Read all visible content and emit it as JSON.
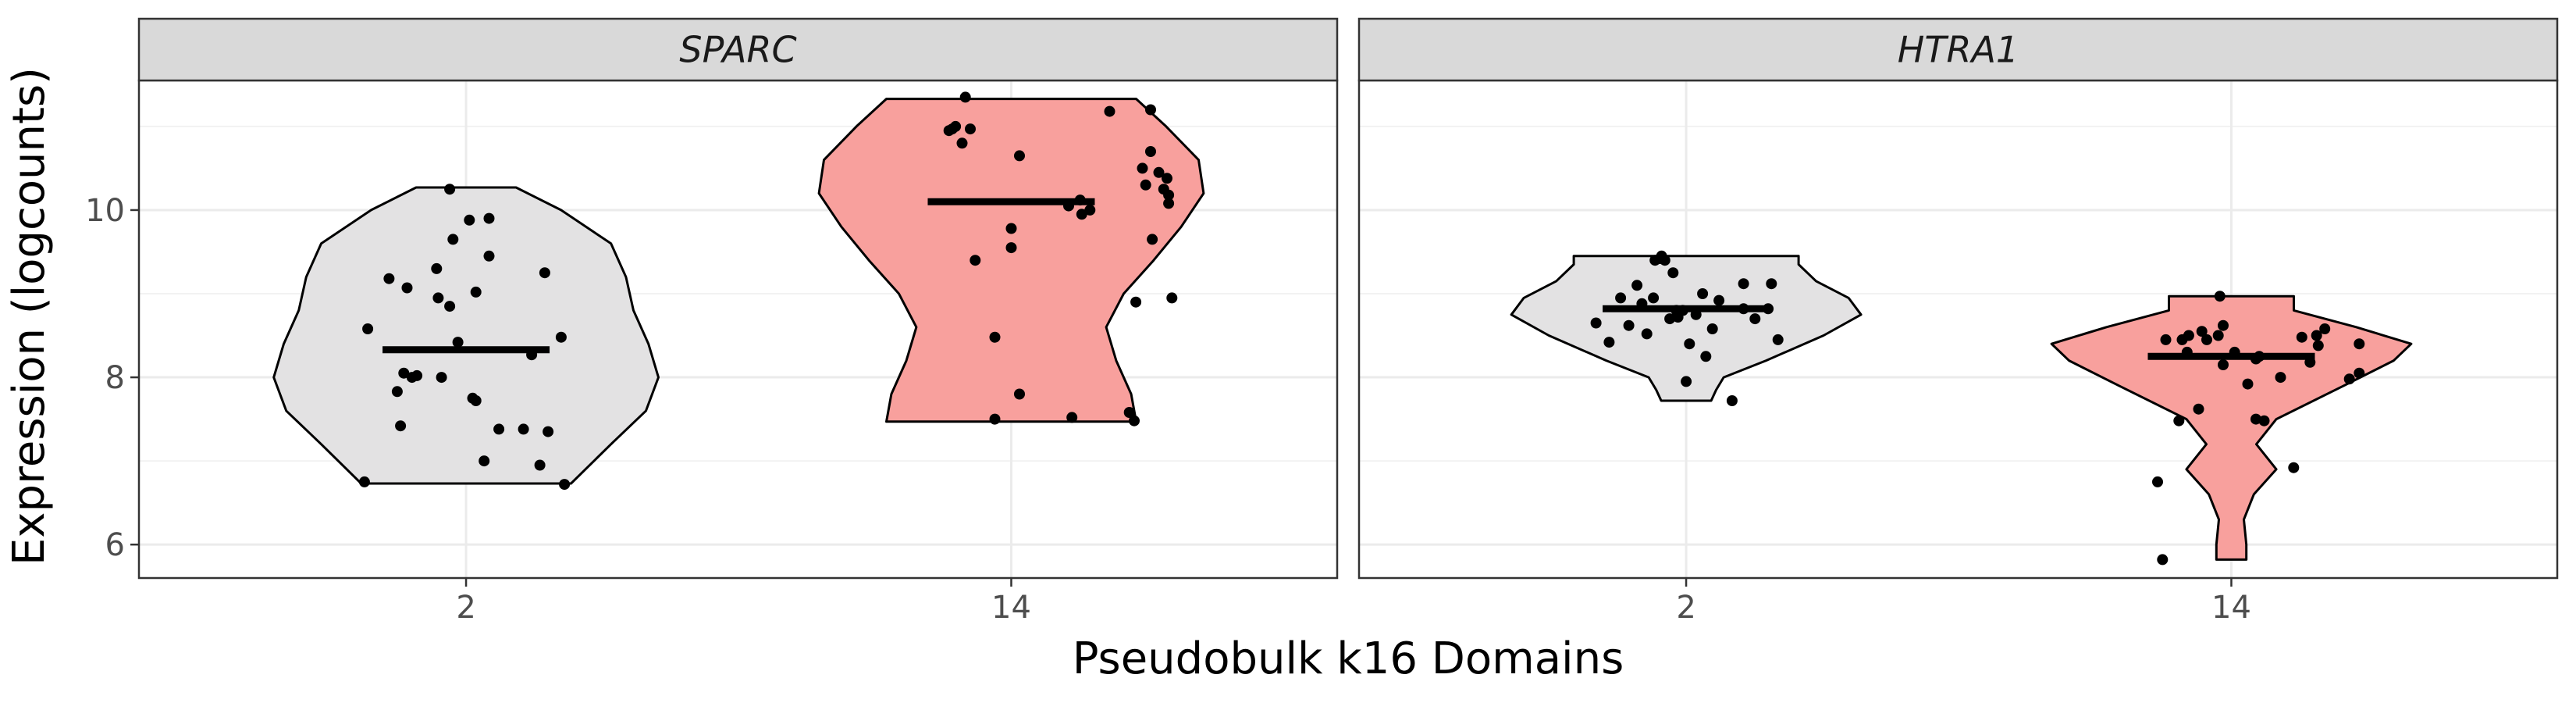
{
  "chart_data": {
    "type": "violin",
    "ylabel": "Expression (logcounts)",
    "xlabel": "Pseudobulk k16 Domains",
    "ylim": [
      5.6,
      11.55
    ],
    "yticks": [
      6,
      8,
      10
    ],
    "grid": true,
    "categories": [
      "2",
      "14"
    ],
    "colors": {
      "2": "#e3e2e3",
      "14": "#f8a09d",
      "strip": "#d9d9d9",
      "grid": "#ebebeb",
      "panel_border": "#333333"
    },
    "panels": [
      {
        "strip": "SPARC",
        "groups": [
          {
            "category": "2",
            "median": 8.33,
            "range": [
              6.73,
              10.27
            ],
            "violin": [
              [
                6.73,
                0.42
              ],
              [
                7.2,
                0.58
              ],
              [
                7.6,
                0.72
              ],
              [
                8.0,
                0.77
              ],
              [
                8.4,
                0.73
              ],
              [
                8.8,
                0.67
              ],
              [
                9.2,
                0.64
              ],
              [
                9.6,
                0.58
              ],
              [
                10.0,
                0.38
              ],
              [
                10.27,
                0.2
              ]
            ],
            "points": [
              [
                -0.62,
                6.75
              ],
              [
                -0.6,
                8.58
              ],
              [
                -0.47,
                9.18
              ],
              [
                -0.42,
                7.83
              ],
              [
                -0.4,
                7.42
              ],
              [
                -0.38,
                8.05
              ],
              [
                -0.36,
                9.07
              ],
              [
                -0.33,
                8.0
              ],
              [
                -0.3,
                8.02
              ],
              [
                -0.18,
                9.3
              ],
              [
                -0.17,
                8.95
              ],
              [
                -0.15,
                8.0
              ],
              [
                -0.1,
                8.85
              ],
              [
                -0.1,
                10.25
              ],
              [
                -0.08,
                9.65
              ],
              [
                -0.05,
                8.42
              ],
              [
                0.02,
                9.88
              ],
              [
                0.04,
                7.75
              ],
              [
                0.06,
                7.72
              ],
              [
                0.06,
                9.02
              ],
              [
                0.11,
                7.0
              ],
              [
                0.14,
                9.45
              ],
              [
                0.14,
                9.9
              ],
              [
                0.2,
                7.38
              ],
              [
                0.35,
                7.38
              ],
              [
                0.4,
                8.27
              ],
              [
                0.45,
                6.95
              ],
              [
                0.48,
                9.25
              ],
              [
                0.5,
                7.35
              ],
              [
                0.58,
                8.48
              ],
              [
                0.6,
                6.72
              ]
            ]
          },
          {
            "category": "14",
            "median": 10.1,
            "range": [
              7.47,
              11.33
            ],
            "violin": [
              [
                7.47,
                0.5
              ],
              [
                7.8,
                0.48
              ],
              [
                8.2,
                0.42
              ],
              [
                8.6,
                0.38
              ],
              [
                9.0,
                0.45
              ],
              [
                9.4,
                0.57
              ],
              [
                9.8,
                0.68
              ],
              [
                10.2,
                0.77
              ],
              [
                10.6,
                0.75
              ],
              [
                11.0,
                0.62
              ],
              [
                11.33,
                0.5
              ]
            ],
            "points": [
              [
                -0.38,
                10.95
              ],
              [
                -0.36,
                10.97
              ],
              [
                -0.34,
                11.0
              ],
              [
                -0.3,
                10.8
              ],
              [
                -0.28,
                11.35
              ],
              [
                -0.25,
                10.97
              ],
              [
                -0.22,
                9.4
              ],
              [
                -0.1,
                8.48
              ],
              [
                -0.1,
                7.5
              ],
              [
                0.0,
                9.78
              ],
              [
                0.0,
                9.55
              ],
              [
                0.05,
                7.8
              ],
              [
                0.05,
                10.65
              ],
              [
                0.35,
                10.05
              ],
              [
                0.37,
                7.52
              ],
              [
                0.42,
                10.12
              ],
              [
                0.43,
                9.95
              ],
              [
                0.48,
                10.0
              ],
              [
                0.6,
                11.18
              ],
              [
                0.72,
                7.58
              ],
              [
                0.75,
                7.48
              ],
              [
                0.76,
                8.9
              ],
              [
                0.8,
                10.5
              ],
              [
                0.82,
                10.3
              ],
              [
                0.85,
                10.7
              ],
              [
                0.85,
                11.2
              ],
              [
                0.86,
                9.65
              ],
              [
                0.9,
                10.45
              ],
              [
                0.93,
                10.25
              ],
              [
                0.95,
                10.38
              ],
              [
                0.96,
                10.18
              ],
              [
                0.96,
                10.08
              ],
              [
                0.98,
                8.95
              ]
            ]
          }
        ]
      },
      {
        "strip": "HTRA1",
        "groups": [
          {
            "category": "2",
            "median": 8.82,
            "range": [
              7.72,
              9.45
            ],
            "violin": [
              [
                7.72,
                0.1
              ],
              [
                7.85,
                0.12
              ],
              [
                8.0,
                0.15
              ],
              [
                8.2,
                0.32
              ],
              [
                8.5,
                0.55
              ],
              [
                8.75,
                0.7
              ],
              [
                8.95,
                0.65
              ],
              [
                9.15,
                0.52
              ],
              [
                9.35,
                0.45
              ],
              [
                9.45,
                0.45
              ]
            ],
            "points": [
              [
                -0.55,
                8.65
              ],
              [
                -0.47,
                8.42
              ],
              [
                -0.4,
                8.95
              ],
              [
                -0.35,
                8.62
              ],
              [
                -0.3,
                9.1
              ],
              [
                -0.27,
                8.88
              ],
              [
                -0.24,
                8.52
              ],
              [
                -0.2,
                8.95
              ],
              [
                -0.19,
                9.4
              ],
              [
                -0.16,
                9.42
              ],
              [
                -0.15,
                9.45
              ],
              [
                -0.13,
                9.4
              ],
              [
                -0.1,
                8.7
              ],
              [
                -0.08,
                9.25
              ],
              [
                -0.06,
                8.8
              ],
              [
                -0.05,
                8.72
              ],
              [
                -0.02,
                8.8
              ],
              [
                0.0,
                7.95
              ],
              [
                0.02,
                8.4
              ],
              [
                0.06,
                8.75
              ],
              [
                0.1,
                9.0
              ],
              [
                0.12,
                8.25
              ],
              [
                0.16,
                8.58
              ],
              [
                0.2,
                8.92
              ],
              [
                0.28,
                7.72
              ],
              [
                0.35,
                8.82
              ],
              [
                0.35,
                9.12
              ],
              [
                0.42,
                8.7
              ],
              [
                0.5,
                8.82
              ],
              [
                0.52,
                9.12
              ],
              [
                0.56,
                8.45
              ]
            ]
          },
          {
            "category": "14",
            "median": 8.25,
            "range": [
              5.82,
              8.97
            ],
            "violin": [
              [
                5.82,
                0.06
              ],
              [
                6.0,
                0.06
              ],
              [
                6.3,
                0.05
              ],
              [
                6.6,
                0.09
              ],
              [
                6.9,
                0.18
              ],
              [
                7.2,
                0.1
              ],
              [
                7.5,
                0.18
              ],
              [
                7.9,
                0.45
              ],
              [
                8.2,
                0.65
              ],
              [
                8.4,
                0.72
              ],
              [
                8.6,
                0.5
              ],
              [
                8.8,
                0.25
              ],
              [
                8.97,
                0.25
              ]
            ],
            "points": [
              [
                -0.45,
                6.75
              ],
              [
                -0.42,
                5.82
              ],
              [
                -0.4,
                8.45
              ],
              [
                -0.32,
                7.48
              ],
              [
                -0.3,
                8.45
              ],
              [
                -0.27,
                8.3
              ],
              [
                -0.26,
                8.5
              ],
              [
                -0.2,
                7.62
              ],
              [
                -0.18,
                8.55
              ],
              [
                -0.15,
                8.45
              ],
              [
                -0.08,
                8.5
              ],
              [
                -0.07,
                8.97
              ],
              [
                -0.05,
                8.62
              ],
              [
                -0.05,
                8.15
              ],
              [
                0.02,
                8.3
              ],
              [
                0.1,
                7.92
              ],
              [
                0.15,
                8.22
              ],
              [
                0.15,
                7.5
              ],
              [
                0.17,
                8.25
              ],
              [
                0.2,
                7.48
              ],
              [
                0.3,
                8.0
              ],
              [
                0.38,
                6.92
              ],
              [
                0.43,
                8.48
              ],
              [
                0.48,
                8.18
              ],
              [
                0.52,
                8.5
              ],
              [
                0.53,
                8.38
              ],
              [
                0.57,
                8.58
              ],
              [
                0.72,
                7.98
              ],
              [
                0.78,
                8.05
              ],
              [
                0.78,
                8.4
              ]
            ]
          }
        ]
      }
    ]
  }
}
